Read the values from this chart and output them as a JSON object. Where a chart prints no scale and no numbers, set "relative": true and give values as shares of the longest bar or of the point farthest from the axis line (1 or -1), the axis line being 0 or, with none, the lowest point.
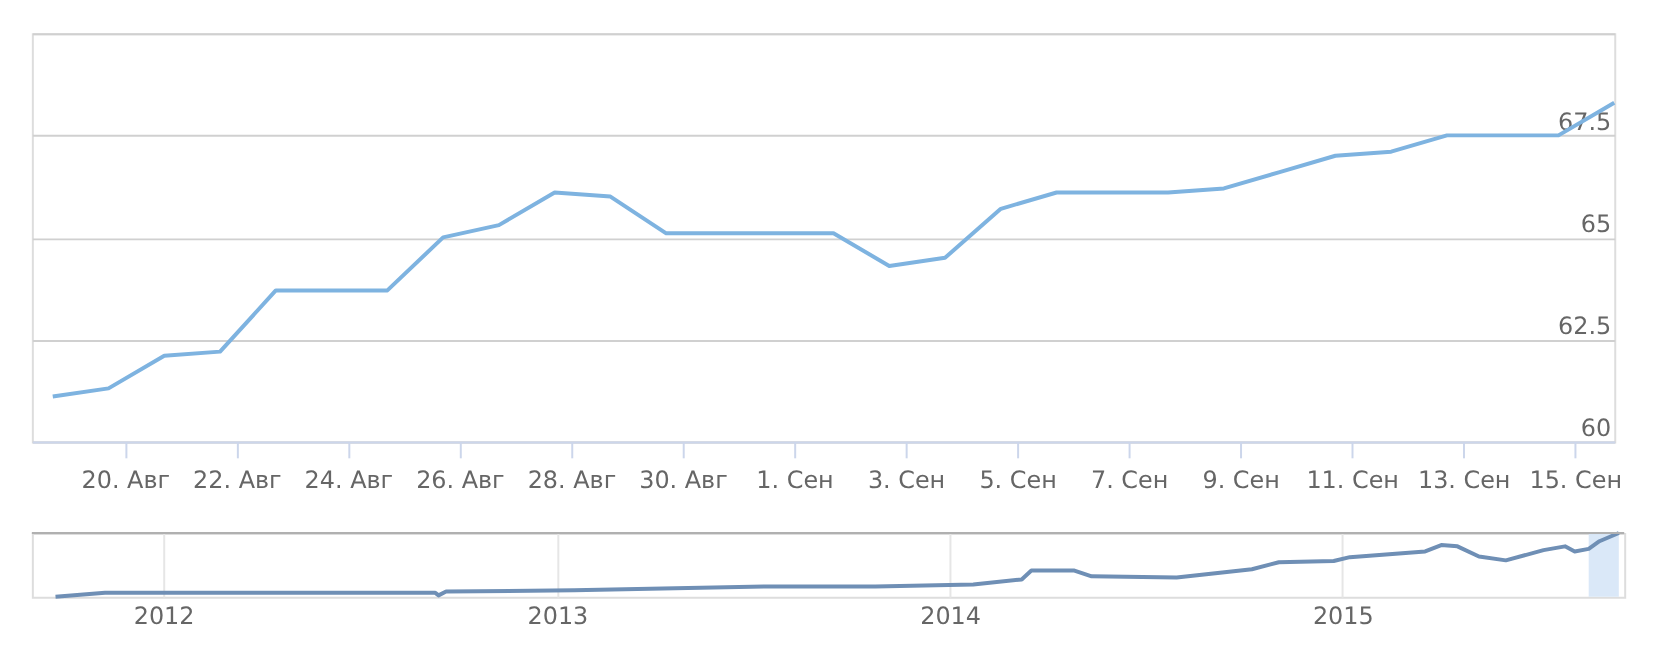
{
  "chart_data": [
    {
      "type": "line",
      "x": [
        "2015-08-18T17:00",
        "2015-08-19T17:00",
        "2015-08-20T17:00",
        "2015-08-21T17:00",
        "2015-08-22T17:00",
        "2015-08-23T17:00",
        "2015-08-24T17:00",
        "2015-08-25T17:00",
        "2015-08-26T17:00",
        "2015-08-27T17:00",
        "2015-08-28T17:00",
        "2015-08-29T17:00",
        "2015-08-30T17:00",
        "2015-08-31T17:00",
        "2015-09-01T17:00",
        "2015-09-02T17:00",
        "2015-09-03T17:00",
        "2015-09-04T17:00",
        "2015-09-05T17:00",
        "2015-09-06T17:00",
        "2015-09-07T17:00",
        "2015-09-08T17:00",
        "2015-09-09T17:00",
        "2015-09-10T17:00",
        "2015-09-11T17:00",
        "2015-09-12T17:00",
        "2015-09-13T17:00",
        "2015-09-14T17:00",
        "2015-09-15T17:00"
      ],
      "series": [
        {
          "color": "#7eb3e0",
          "values": [
            61.1,
            61.3,
            62.1,
            62.2,
            63.7,
            63.7,
            63.7,
            65.0,
            65.3,
            66.1,
            66.0,
            65.1,
            65.1,
            65.1,
            65.1,
            64.3,
            64.5,
            65.7,
            66.1,
            66.1,
            66.1,
            66.2,
            66.6,
            67.0,
            67.1,
            67.5,
            67.5,
            67.5,
            68.3
          ]
        }
      ],
      "xlim": [
        "2015-08-18T08:00",
        "2015-09-15T17:00"
      ],
      "xticks": [
        {
          "value": "2015-08-20",
          "label": "20. Авг"
        },
        {
          "value": "2015-08-22",
          "label": "22. Авг"
        },
        {
          "value": "2015-08-24",
          "label": "24. Авг"
        },
        {
          "value": "2015-08-26",
          "label": "26. Авг"
        },
        {
          "value": "2015-08-28",
          "label": "28. Авг"
        },
        {
          "value": "2015-08-30",
          "label": "30. Авг"
        },
        {
          "value": "2015-09-01",
          "label": "1. Сен"
        },
        {
          "value": "2015-09-03",
          "label": "3. Сен"
        },
        {
          "value": "2015-09-05",
          "label": "5. Сен"
        },
        {
          "value": "2015-09-07",
          "label": "7. Сен"
        },
        {
          "value": "2015-09-09",
          "label": "9. Сен"
        },
        {
          "value": "2015-09-11",
          "label": "11. Сен"
        },
        {
          "value": "2015-09-13",
          "label": "13. Сен"
        },
        {
          "value": "2015-09-15",
          "label": "15. Сен"
        }
      ],
      "ylim": [
        60,
        70
      ],
      "yticks": [
        60,
        62.5,
        65,
        67.5,
        {
          "value": 70,
          "label": null
        }
      ],
      "grid": "y"
    },
    {
      "type": "line",
      "relative": true,
      "x": [
        "2011-09-23",
        "2011-11-08",
        "2012-03-03",
        "2012-09-10",
        "2012-09-13",
        "2012-09-20",
        "2013-01-17",
        "2013-07-16",
        "2013-10-24",
        "2014-01-23",
        "2014-03-09",
        "2014-03-18",
        "2014-04-27",
        "2014-05-13",
        "2014-07-31",
        "2014-10-09",
        "2014-11-03",
        "2014-12-24",
        "2015-01-08",
        "2015-03-19",
        "2015-04-03",
        "2015-04-18",
        "2015-05-08",
        "2015-06-02",
        "2015-07-07",
        "2015-07-27",
        "2015-08-05",
        "2015-08-18",
        "2015-08-28",
        "2015-09-15"
      ],
      "series": [
        {
          "color": "#6f8fb5",
          "values": [
            0,
            0.06,
            0.06,
            0.06,
            0.02,
            0.08,
            0.1,
            0.16,
            0.16,
            0.19,
            0.27,
            0.41,
            0.41,
            0.32,
            0.3,
            0.43,
            0.54,
            0.56,
            0.62,
            0.71,
            0.81,
            0.79,
            0.63,
            0.57,
            0.73,
            0.79,
            0.71,
            0.75,
            0.87,
            1.0
          ]
        }
      ],
      "xlim": [
        "2011-09-01",
        "2015-09-20"
      ],
      "xticks": [
        {
          "value": "2012-01-01",
          "label": "2012"
        },
        {
          "value": "2013-01-01",
          "label": "2013"
        },
        {
          "value": "2014-01-01",
          "label": "2014"
        },
        {
          "value": "2015-01-01",
          "label": "2015"
        }
      ],
      "bands": [
        {
          "axis": "x",
          "from": "2015-08-18",
          "to": "2015-09-15",
          "color": "#d6e6f7"
        }
      ],
      "grid": "x"
    }
  ]
}
